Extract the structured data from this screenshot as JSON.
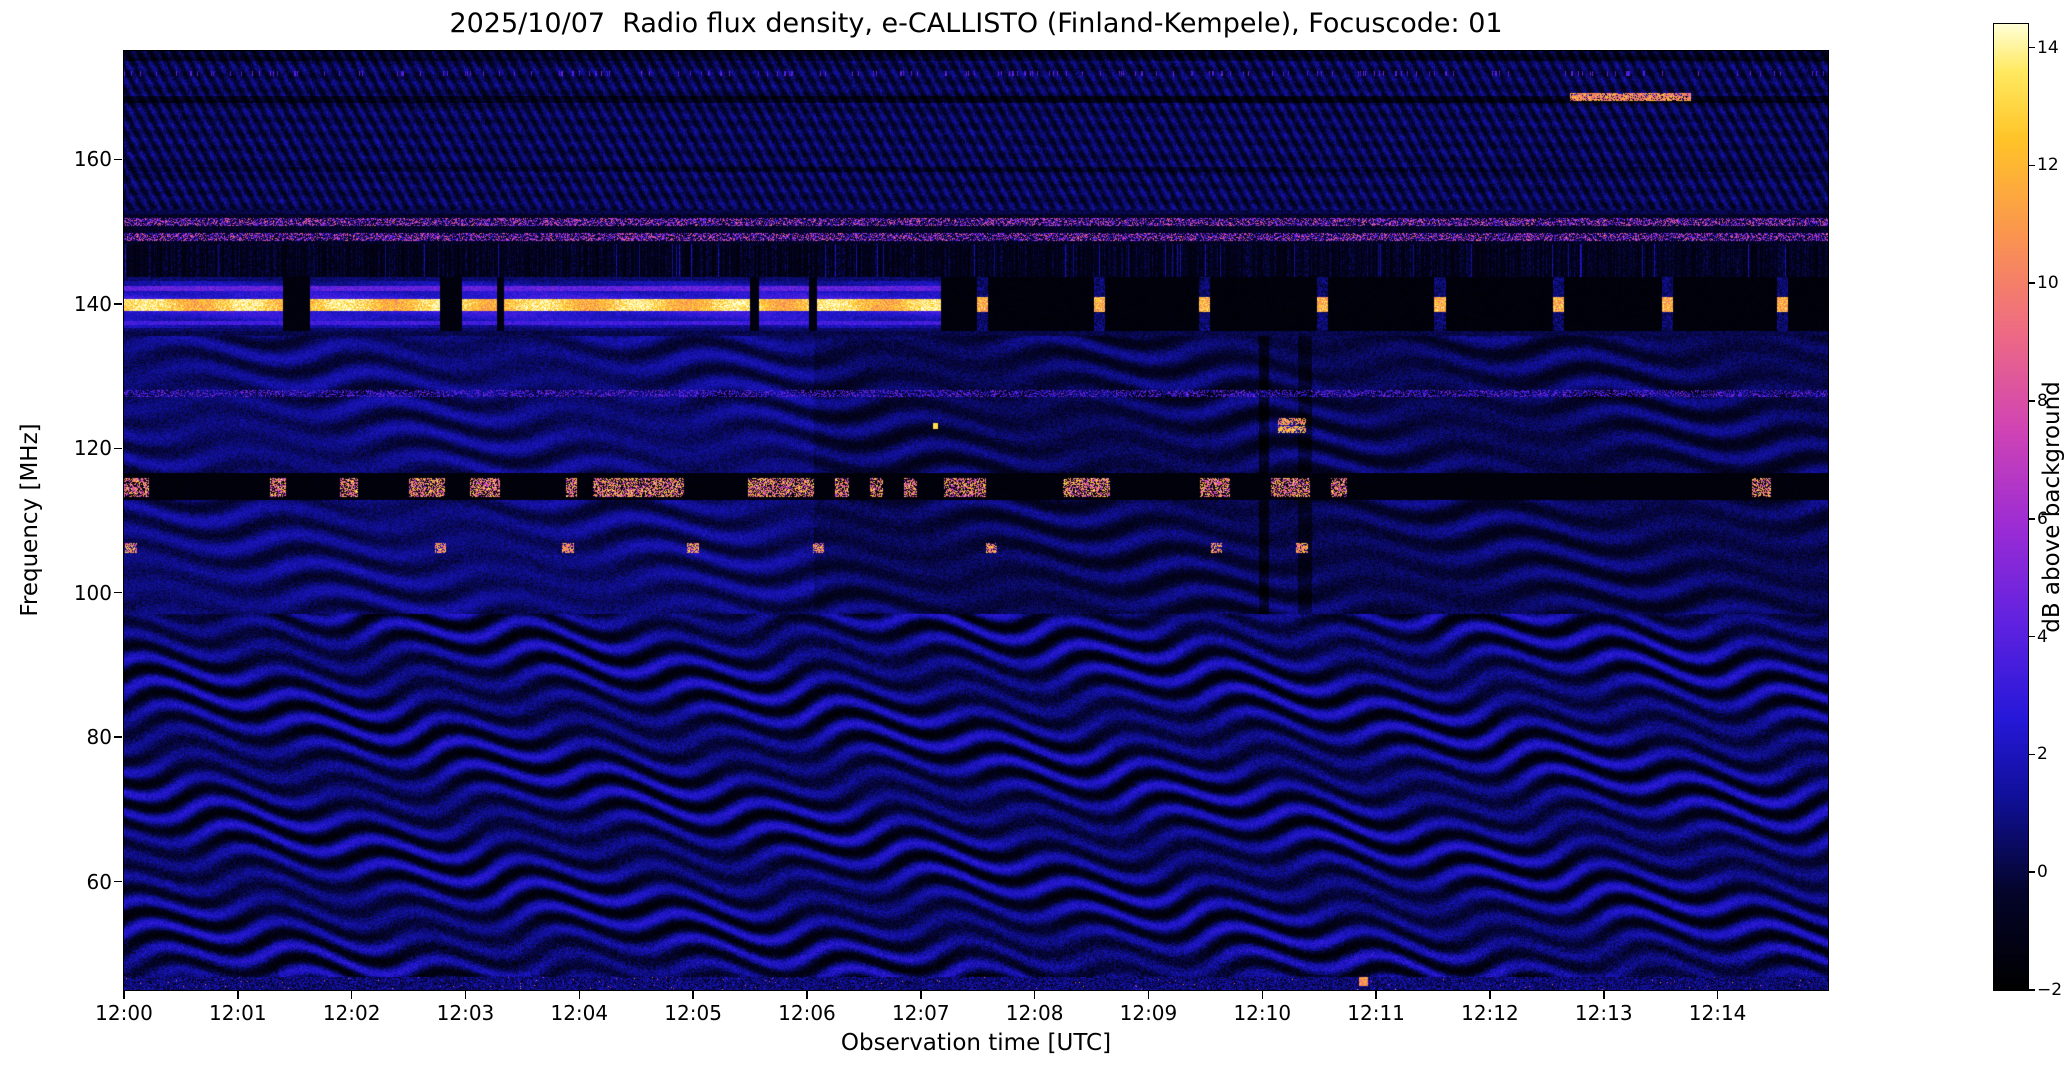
{
  "chart_data": {
    "type": "heatmap",
    "title": "2025/10/07  Radio flux density, e-CALLISTO (Finland-Kempele), Focuscode: 01",
    "xlabel": "Observation time [UTC]",
    "ylabel": "Frequency [MHz]",
    "freq_range": [
      45,
      175
    ],
    "duration_min": 14.97,
    "x_start": "12:00",
    "xticks": [
      {
        "minutes": 0,
        "label": "12:00"
      },
      {
        "minutes": 1,
        "label": "12:01"
      },
      {
        "minutes": 2,
        "label": "12:02"
      },
      {
        "minutes": 3,
        "label": "12:03"
      },
      {
        "minutes": 4,
        "label": "12:04"
      },
      {
        "minutes": 5,
        "label": "12:05"
      },
      {
        "minutes": 6,
        "label": "12:06"
      },
      {
        "minutes": 7,
        "label": "12:07"
      },
      {
        "minutes": 8,
        "label": "12:08"
      },
      {
        "minutes": 9,
        "label": "12:09"
      },
      {
        "minutes": 10,
        "label": "12:10"
      },
      {
        "minutes": 11,
        "label": "12:11"
      },
      {
        "minutes": 12,
        "label": "12:12"
      },
      {
        "minutes": 13,
        "label": "12:13"
      },
      {
        "minutes": 14,
        "label": "12:14"
      }
    ],
    "yticks": [
      {
        "freq": 60,
        "label": "60"
      },
      {
        "freq": 80,
        "label": "80"
      },
      {
        "freq": 100,
        "label": "100"
      },
      {
        "freq": 120,
        "label": "120"
      },
      {
        "freq": 140,
        "label": "140"
      },
      {
        "freq": 160,
        "label": "160"
      }
    ],
    "colorbar": {
      "label": "dB above background",
      "vmin": -2,
      "vmax": 14.4,
      "ticks": [
        {
          "value": -2,
          "label": "−2"
        },
        {
          "value": 0,
          "label": "0"
        },
        {
          "value": 2,
          "label": "2"
        },
        {
          "value": 4,
          "label": "4"
        },
        {
          "value": 6,
          "label": "6"
        },
        {
          "value": 8,
          "label": "8"
        },
        {
          "value": 10,
          "label": "10"
        },
        {
          "value": 12,
          "label": "12"
        },
        {
          "value": 14,
          "label": "14"
        }
      ],
      "stops": [
        [
          0.0,
          "#000000"
        ],
        [
          0.1,
          "#04042a"
        ],
        [
          0.2,
          "#10109a"
        ],
        [
          0.28,
          "#2618d8"
        ],
        [
          0.38,
          "#6022e0"
        ],
        [
          0.48,
          "#9c2cd4"
        ],
        [
          0.58,
          "#d044b4"
        ],
        [
          0.68,
          "#ee6a84"
        ],
        [
          0.78,
          "#fa9450"
        ],
        [
          0.88,
          "#ffc428"
        ],
        [
          0.95,
          "#ffe960"
        ],
        [
          1.0,
          "#ffffd8"
        ]
      ]
    },
    "features": {
      "elevated_patch": {
        "band_mhz": [
          98,
          135.5
        ],
        "until_min": 6.06
      },
      "carrier_band": {
        "band_mhz": [
          136.2,
          143.7
        ],
        "peak_freq_mhz": 139.85,
        "active_until_min": 7.18,
        "gaps_min": [
          [
            1.4,
            1.63
          ],
          [
            2.78,
            2.97
          ],
          [
            3.28,
            3.34
          ],
          [
            5.5,
            5.58
          ],
          [
            6.02,
            6.09
          ]
        ],
        "post_dropout_ticks_min": [
          7.54,
          8.57,
          9.49,
          10.53,
          11.56,
          12.6,
          13.56,
          14.57
        ]
      },
      "fm_band": {
        "band_mhz": [
          112.85,
          116.55
        ],
        "center_mhz": 114.6,
        "burst_intervals_min": [
          [
            0.0,
            0.22
          ],
          [
            1.28,
            1.42
          ],
          [
            1.9,
            2.06
          ],
          [
            2.5,
            2.82
          ],
          [
            3.04,
            3.3
          ],
          [
            3.88,
            3.98
          ],
          [
            4.12,
            4.92
          ],
          [
            5.48,
            6.06
          ],
          [
            6.25,
            6.37
          ],
          [
            6.55,
            6.67
          ],
          [
            6.85,
            6.97
          ],
          [
            7.2,
            7.57
          ],
          [
            8.25,
            8.66
          ],
          [
            9.45,
            9.72
          ],
          [
            10.08,
            10.42
          ],
          [
            10.6,
            10.74
          ],
          [
            14.3,
            14.47
          ]
        ]
      },
      "low_blobs": {
        "freq_mhz": 106.2,
        "times_min": [
          0.06,
          2.78,
          3.9,
          5.0,
          6.1,
          7.62,
          9.6,
          10.35
        ]
      },
      "blob_pair": {
        "interval_min": [
          10.14,
          10.38
        ],
        "freqs_mhz": [
          122.6,
          123.7
        ]
      },
      "bright_dot": {
        "time_min": 7.13,
        "freq_mhz": 123.1
      },
      "orange_streak": {
        "interval_min": [
          12.7,
          13.77
        ],
        "freq_mhz": 168.6
      },
      "bottom_dot": {
        "time_min": 10.89,
        "freq_mhz": 46.2
      },
      "speckle_rows_mhz": [
        149.3,
        151.3
      ],
      "speckle_line_mhz": 127.6,
      "interference_band_mhz": [
        143.6,
        148.3
      ],
      "dark_rows_mhz": [
        158.6,
        168.3
      ]
    }
  }
}
